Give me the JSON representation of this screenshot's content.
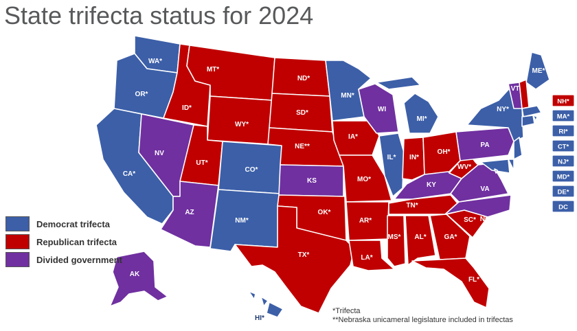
{
  "title": "State trifecta status for 2024",
  "colors": {
    "dem": "#3c5fa8",
    "rep": "#c00000",
    "div": "#7030a0"
  },
  "legend": [
    {
      "status": "dem",
      "label": "Democrat trifecta"
    },
    {
      "status": "rep",
      "label": "Republican trifecta"
    },
    {
      "status": "div",
      "label": "Divided government"
    }
  ],
  "states": [
    {
      "code": "WA",
      "label": "WA*",
      "status": "dem"
    },
    {
      "code": "OR",
      "label": "OR*",
      "status": "dem"
    },
    {
      "code": "CA",
      "label": "CA*",
      "status": "dem"
    },
    {
      "code": "NV",
      "label": "NV",
      "status": "div"
    },
    {
      "code": "ID",
      "label": "ID*",
      "status": "rep"
    },
    {
      "code": "MT",
      "label": "MT*",
      "status": "rep"
    },
    {
      "code": "WY",
      "label": "WY*",
      "status": "rep"
    },
    {
      "code": "UT",
      "label": "UT*",
      "status": "rep"
    },
    {
      "code": "AZ",
      "label": "AZ",
      "status": "div"
    },
    {
      "code": "CO",
      "label": "CO*",
      "status": "dem"
    },
    {
      "code": "NM",
      "label": "NM*",
      "status": "dem"
    },
    {
      "code": "ND",
      "label": "ND*",
      "status": "rep"
    },
    {
      "code": "SD",
      "label": "SD*",
      "status": "rep"
    },
    {
      "code": "NE",
      "label": "NE**",
      "status": "rep"
    },
    {
      "code": "KS",
      "label": "KS",
      "status": "div"
    },
    {
      "code": "OK",
      "label": "OK*",
      "status": "rep"
    },
    {
      "code": "TX",
      "label": "TX*",
      "status": "rep"
    },
    {
      "code": "MN",
      "label": "MN*",
      "status": "dem"
    },
    {
      "code": "IA",
      "label": "IA*",
      "status": "rep"
    },
    {
      "code": "MO",
      "label": "MO*",
      "status": "rep"
    },
    {
      "code": "AR",
      "label": "AR*",
      "status": "rep"
    },
    {
      "code": "LA",
      "label": "LA*",
      "status": "rep"
    },
    {
      "code": "WI",
      "label": "WI",
      "status": "div"
    },
    {
      "code": "IL",
      "label": "IL*",
      "status": "dem"
    },
    {
      "code": "MI",
      "label": "MI*",
      "status": "dem"
    },
    {
      "code": "IN",
      "label": "IN*",
      "status": "rep"
    },
    {
      "code": "OH",
      "label": "OH*",
      "status": "rep"
    },
    {
      "code": "KY",
      "label": "KY",
      "status": "div"
    },
    {
      "code": "TN",
      "label": "TN*",
      "status": "rep"
    },
    {
      "code": "MS",
      "label": "MS*",
      "status": "rep"
    },
    {
      "code": "AL",
      "label": "AL*",
      "status": "rep"
    },
    {
      "code": "GA",
      "label": "GA*",
      "status": "rep"
    },
    {
      "code": "FL",
      "label": "FL*",
      "status": "rep"
    },
    {
      "code": "SC",
      "label": "SC*",
      "status": "rep"
    },
    {
      "code": "NC",
      "label": "NC",
      "status": "div"
    },
    {
      "code": "VA",
      "label": "VA",
      "status": "div"
    },
    {
      "code": "WV",
      "label": "WV*",
      "status": "rep"
    },
    {
      "code": "PA",
      "label": "PA",
      "status": "div"
    },
    {
      "code": "NY",
      "label": "NY*",
      "status": "dem"
    },
    {
      "code": "VT",
      "label": "VT",
      "status": "div"
    },
    {
      "code": "ME",
      "label": "ME*",
      "status": "dem"
    },
    {
      "code": "AK",
      "label": "AK",
      "status": "div"
    },
    {
      "code": "HI",
      "label": "HI*",
      "status": "dem"
    }
  ],
  "small_states": [
    {
      "code": "NH",
      "label": "NH*",
      "status": "rep"
    },
    {
      "code": "MA",
      "label": "MA*",
      "status": "dem"
    },
    {
      "code": "RI",
      "label": "RI*",
      "status": "dem"
    },
    {
      "code": "CT",
      "label": "CT*",
      "status": "dem"
    },
    {
      "code": "NJ",
      "label": "NJ*",
      "status": "dem"
    },
    {
      "code": "MD",
      "label": "MD*",
      "status": "dem"
    },
    {
      "code": "DE",
      "label": "DE*",
      "status": "dem"
    },
    {
      "code": "DC",
      "label": "DC",
      "status": "dem"
    }
  ],
  "footnotes": [
    "*Trifecta",
    "**Nebraska unicameral legislature included in trifectas"
  ]
}
